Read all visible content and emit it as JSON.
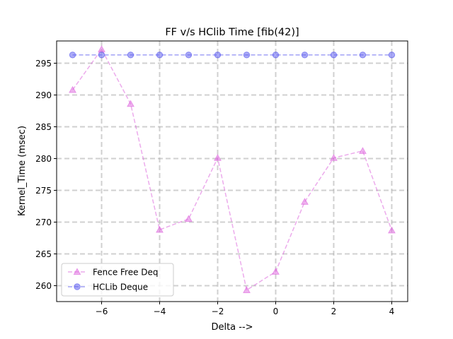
{
  "chart_data": {
    "type": "line",
    "title": "FF v/s HClib Time [fib(42)]",
    "xlabel": "Delta -->",
    "ylabel": "Kernel_Time (msec)",
    "xlim": [
      -7.55,
      4.55
    ],
    "ylim": [
      257.5,
      298.5
    ],
    "xticks": [
      -6,
      -4,
      -2,
      0,
      2,
      4
    ],
    "xtick_labels": [
      "−6",
      "−4",
      "−2",
      "0",
      "2",
      "4"
    ],
    "yticks": [
      260,
      265,
      270,
      275,
      280,
      285,
      290,
      295
    ],
    "ytick_labels": [
      "260",
      "265",
      "270",
      "275",
      "280",
      "285",
      "290",
      "295"
    ],
    "grid": true,
    "legend_position": "lower-left",
    "x": [
      -7,
      -6,
      -5,
      -4,
      -3,
      -2,
      -1,
      0,
      1,
      2,
      3,
      4
    ],
    "series": [
      {
        "name": "Fence Free Deq",
        "color": "#dd66dd",
        "marker": "triangle",
        "values": [
          290.8,
          297.2,
          288.6,
          268.8,
          270.5,
          280.1,
          259.3,
          262.2,
          273.2,
          280.1,
          281.2,
          268.7
        ]
      },
      {
        "name": "HCLib Deque",
        "color": "#5555ee",
        "marker": "circle",
        "values": [
          296.3,
          296.3,
          296.3,
          296.3,
          296.3,
          296.3,
          296.3,
          296.3,
          296.3,
          296.3,
          296.3,
          296.3
        ]
      }
    ]
  }
}
